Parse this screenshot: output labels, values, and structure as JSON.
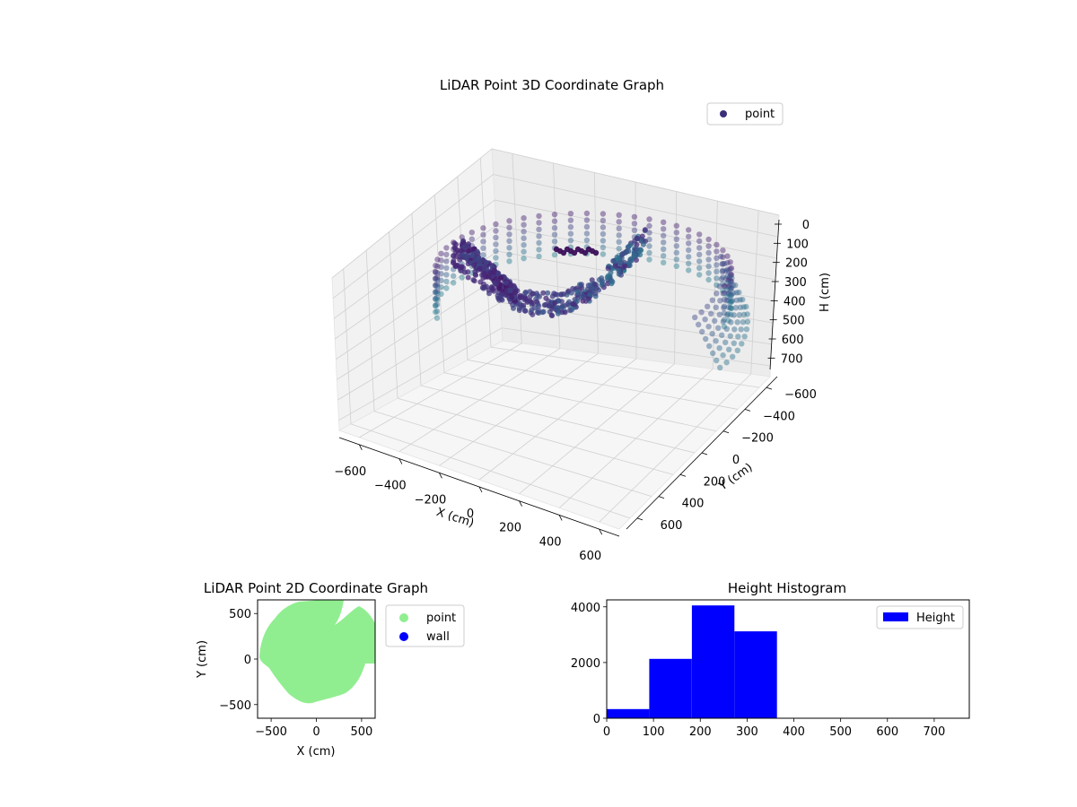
{
  "figure": {
    "background": "#ffffff"
  },
  "chart_data": [
    {
      "type": "scatter",
      "projection": "3d",
      "title": "LiDAR Point 3D Coordinate Graph",
      "xlabel": "X (cm)",
      "ylabel": "Y (cm)",
      "zlabel": "H (cm)",
      "xlim": [
        -700,
        700
      ],
      "ylim": [
        -700,
        700
      ],
      "zlim": [
        0,
        750
      ],
      "z_inverted": true,
      "xticks": [
        -600,
        -400,
        -200,
        0,
        200,
        400,
        600
      ],
      "yticks": [
        -600,
        -400,
        -200,
        0,
        200,
        400,
        600
      ],
      "zticks": [
        0,
        100,
        200,
        300,
        400,
        500,
        600,
        700
      ],
      "grid": true,
      "colormap": "viridis",
      "series": [
        {
          "name": "point",
          "color": "#3b2f7a"
        }
      ],
      "legend": {
        "position": "upper right",
        "entries": [
          "point"
        ]
      }
    },
    {
      "type": "scatter",
      "title": "LiDAR Point 2D Coordinate Graph",
      "xlabel": "X (cm)",
      "ylabel": "Y (cm)",
      "xlim": [
        -650,
        650
      ],
      "ylim": [
        -650,
        650
      ],
      "xticks": [
        -500,
        0,
        500
      ],
      "yticks": [
        -500,
        0,
        500
      ],
      "grid": false,
      "series": [
        {
          "name": "point",
          "color": "#90ee90"
        },
        {
          "name": "wall",
          "color": "#0000ff"
        }
      ],
      "legend": {
        "position": "outside right",
        "entries": [
          "point",
          "wall"
        ]
      }
    },
    {
      "type": "bar",
      "subtype": "histogram",
      "title": "Height Histogram",
      "xlabel": "",
      "ylabel": "",
      "xlim": [
        0,
        775
      ],
      "ylim": [
        0,
        4250
      ],
      "xticks": [
        0,
        100,
        200,
        300,
        400,
        500,
        600,
        700
      ],
      "yticks": [
        0,
        2000,
        4000
      ],
      "bins": [
        {
          "start": 0,
          "end": 91,
          "count": 330
        },
        {
          "start": 91,
          "end": 182,
          "count": 2130
        },
        {
          "start": 182,
          "end": 273,
          "count": 4050
        },
        {
          "start": 273,
          "end": 364,
          "count": 3120
        },
        {
          "start": 364,
          "end": 455,
          "count": 0
        },
        {
          "start": 455,
          "end": 546,
          "count": 0
        },
        {
          "start": 546,
          "end": 637,
          "count": 0
        },
        {
          "start": 637,
          "end": 728,
          "count": 0
        }
      ],
      "series": [
        {
          "name": "Height",
          "color": "#0000ff"
        }
      ],
      "legend": {
        "position": "upper right",
        "entries": [
          "Height"
        ]
      }
    }
  ]
}
